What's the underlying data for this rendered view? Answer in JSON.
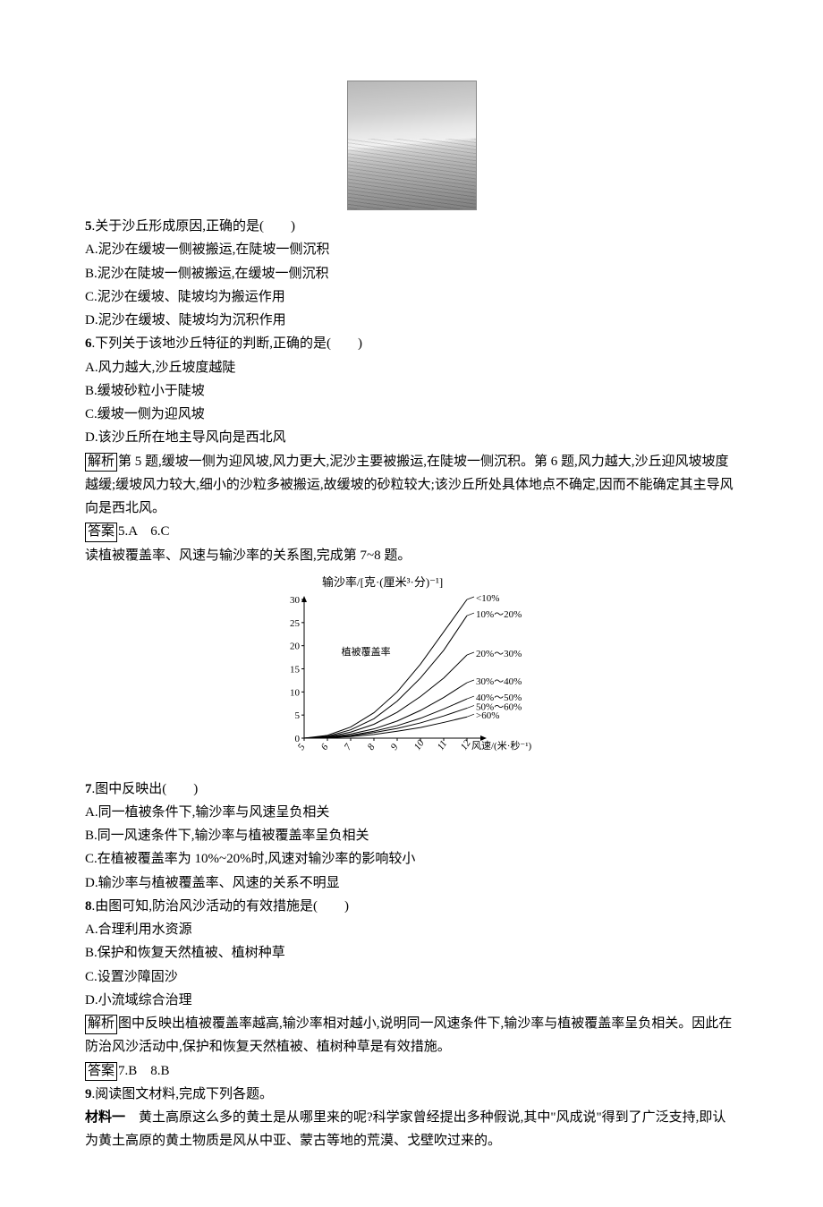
{
  "photo_alt": "沙丘照片",
  "q5": {
    "num": "5",
    "stem": ".关于沙丘形成原因,正确的是(　　)",
    "A": "A.泥沙在缓坡一侧被搬运,在陡坡一侧沉积",
    "B": "B.泥沙在陡坡一侧被搬运,在缓坡一侧沉积",
    "C": "C.泥沙在缓坡、陡坡均为搬运作用",
    "D": "D.泥沙在缓坡、陡坡均为沉积作用"
  },
  "q6": {
    "num": "6",
    "stem": ".下列关于该地沙丘特征的判断,正确的是(　　)",
    "A": "A.风力越大,沙丘坡度越陡",
    "B": "B.缓坡砂粒小于陡坡",
    "C": "C.缓坡一侧为迎风坡",
    "D": "D.该沙丘所在地主导风向是西北风"
  },
  "exp56_label": "解析",
  "exp56_text": "第 5 题,缓坡一侧为迎风坡,风力更大,泥沙主要被搬运,在陡坡一侧沉积。第 6 题,风力越大,沙丘迎风坡坡度越缓;缓坡风力较大,细小的沙粒多被搬运,故缓坡的砂粒较大;该沙丘所处具体地点不确定,因而不能确定其主导风向是西北风。",
  "ans56_label": "答案",
  "ans56_text": "5.A　6.C",
  "intro78": "读植被覆盖率、风速与输沙率的关系图,完成第 7~8 题。",
  "chart": {
    "type": "line",
    "y_label": "输沙率/[克·(厘米³·分)⁻¹]",
    "x_label": "风速/(米·秒⁻¹)",
    "legend_title": "植被覆盖率",
    "y_ticks": [
      0,
      5,
      10,
      15,
      20,
      25,
      30
    ],
    "x_ticks": [
      5,
      6,
      7,
      8,
      9,
      10,
      11,
      12
    ],
    "series": [
      {
        "name": "<10%",
        "color": "#000",
        "pts": [
          [
            5,
            0
          ],
          [
            6,
            0.6
          ],
          [
            7,
            2.4
          ],
          [
            8,
            5.5
          ],
          [
            9,
            10
          ],
          [
            10,
            16
          ],
          [
            11,
            23
          ],
          [
            12,
            30
          ]
        ]
      },
      {
        "name": "10%～20%",
        "color": "#000",
        "pts": [
          [
            5,
            0
          ],
          [
            6,
            0.4
          ],
          [
            7,
            1.8
          ],
          [
            8,
            4.2
          ],
          [
            9,
            8
          ],
          [
            10,
            13
          ],
          [
            11,
            19
          ],
          [
            12,
            26.5
          ]
        ]
      },
      {
        "name": "20%～30%",
        "color": "#000",
        "pts": [
          [
            5,
            0
          ],
          [
            6,
            0.3
          ],
          [
            7,
            1.3
          ],
          [
            8,
            3
          ],
          [
            9,
            5.6
          ],
          [
            10,
            9
          ],
          [
            11,
            13
          ],
          [
            12,
            18
          ]
        ]
      },
      {
        "name": "30%～40%",
        "color": "#000",
        "pts": [
          [
            5,
            0
          ],
          [
            6,
            0.2
          ],
          [
            7,
            0.9
          ],
          [
            8,
            2
          ],
          [
            9,
            3.7
          ],
          [
            10,
            6
          ],
          [
            11,
            8.8
          ],
          [
            12,
            12
          ]
        ]
      },
      {
        "name": "40%～50%",
        "color": "#000",
        "pts": [
          [
            5,
            0
          ],
          [
            6,
            0.15
          ],
          [
            7,
            0.6
          ],
          [
            8,
            1.5
          ],
          [
            9,
            2.7
          ],
          [
            10,
            4.3
          ],
          [
            11,
            6.3
          ],
          [
            12,
            8.5
          ]
        ]
      },
      {
        "name": "50%～60%",
        "color": "#000",
        "pts": [
          [
            5,
            0
          ],
          [
            6,
            0.1
          ],
          [
            7,
            0.5
          ],
          [
            8,
            1.2
          ],
          [
            9,
            2.1
          ],
          [
            10,
            3.3
          ],
          [
            11,
            4.8
          ],
          [
            12,
            6.5
          ]
        ]
      },
      {
        "name": ">60%",
        "color": "#000",
        "pts": [
          [
            5,
            0
          ],
          [
            6,
            0.08
          ],
          [
            7,
            0.35
          ],
          [
            8,
            0.8
          ],
          [
            9,
            1.5
          ],
          [
            10,
            2.3
          ],
          [
            11,
            3.4
          ],
          [
            12,
            4.6
          ]
        ]
      }
    ],
    "font_size": 11,
    "axis_color": "#000",
    "line_width": 1,
    "xlim": [
      5,
      12.5
    ],
    "ylim": [
      0,
      30
    ]
  },
  "q7": {
    "num": "7",
    "stem": ".图中反映出(　　)",
    "A": "A.同一植被条件下,输沙率与风速呈负相关",
    "B": "B.同一风速条件下,输沙率与植被覆盖率呈负相关",
    "C": "C.在植被覆盖率为 10%~20%时,风速对输沙率的影响较小",
    "D": "D.输沙率与植被覆盖率、风速的关系不明显"
  },
  "q8": {
    "num": "8",
    "stem": ".由图可知,防治风沙活动的有效措施是(　　)",
    "A": "A.合理利用水资源",
    "B": "B.保护和恢复天然植被、植树种草",
    "C": "C.设置沙障固沙",
    "D": "D.小流域综合治理"
  },
  "exp78_label": "解析",
  "exp78_text": "图中反映出植被覆盖率越高,输沙率相对越小,说明同一风速条件下,输沙率与植被覆盖率呈负相关。因此在防治风沙活动中,保护和恢复天然植被、植树种草是有效措施。",
  "ans78_label": "答案",
  "ans78_text": "7.B　8.B",
  "q9": {
    "num": "9",
    "stem": ".阅读图文材料,完成下列各题。"
  },
  "mat1_label": "材料一",
  "mat1_text": "　黄土高原这么多的黄土是从哪里来的呢?科学家曾经提出多种假说,其中\"风成说\"得到了广泛支持,即认为黄土高原的黄土物质是风从中亚、蒙古等地的荒漠、戈壁吹过来的。"
}
